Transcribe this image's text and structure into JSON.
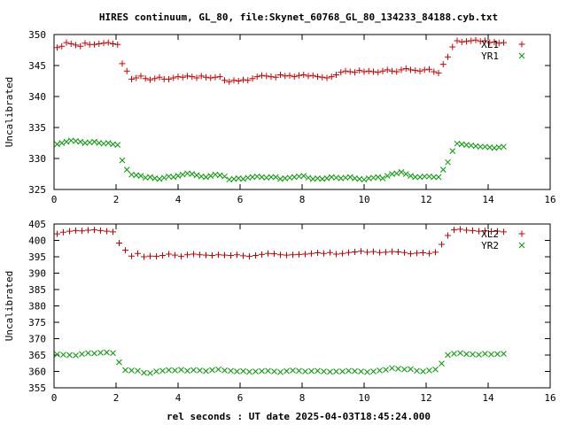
{
  "title": "HIRES continuum, GL_80, file:Skynet_60768_GL_80_134233_84188.cyb.txt",
  "xlabel": "rel seconds : UT date 2025-04-03T18:45:24.000",
  "colors": {
    "series1": "#cc0000",
    "series2": "#009900"
  },
  "chart_data": [
    {
      "type": "scatter",
      "title": "HIRES continuum, GL_80, file:Skynet_60768_GL_80_134233_84188.cyb.txt",
      "ylabel": "Uncalibrated",
      "xlabel": "",
      "xlim": [
        0,
        16
      ],
      "ylim": [
        325,
        350
      ],
      "xticks": [
        0,
        2,
        4,
        6,
        8,
        10,
        12,
        14,
        16
      ],
      "yticks": [
        325,
        330,
        335,
        340,
        345,
        350
      ],
      "grid": false,
      "legend": "top-right",
      "series": [
        {
          "name": "XL1",
          "marker": "plus",
          "x": [
            0.1,
            0.25,
            0.4,
            0.55,
            0.7,
            0.85,
            1.0,
            1.15,
            1.3,
            1.45,
            1.6,
            1.75,
            1.9,
            2.05,
            2.2,
            2.35,
            2.5,
            2.65,
            2.8,
            2.95,
            3.1,
            3.25,
            3.4,
            3.55,
            3.7,
            3.85,
            4.0,
            4.15,
            4.3,
            4.45,
            4.6,
            4.75,
            4.9,
            5.05,
            5.2,
            5.35,
            5.5,
            5.65,
            5.8,
            5.95,
            6.1,
            6.25,
            6.4,
            6.55,
            6.7,
            6.85,
            7.0,
            7.15,
            7.3,
            7.45,
            7.6,
            7.75,
            7.9,
            8.05,
            8.2,
            8.35,
            8.5,
            8.65,
            8.8,
            8.95,
            9.1,
            9.25,
            9.4,
            9.55,
            9.7,
            9.85,
            10.0,
            10.15,
            10.3,
            10.45,
            10.6,
            10.75,
            10.9,
            11.05,
            11.2,
            11.35,
            11.5,
            11.65,
            11.8,
            11.95,
            12.1,
            12.25,
            12.4,
            12.55,
            12.7,
            12.85,
            13.0,
            13.15,
            13.3,
            13.45,
            13.6,
            13.75,
            13.9,
            14.05,
            14.2,
            14.35,
            14.5
          ],
          "y": [
            347.9,
            348.1,
            348.7,
            348.5,
            348.3,
            348.1,
            348.6,
            348.4,
            348.4,
            348.5,
            348.6,
            348.7,
            348.5,
            348.4,
            345.3,
            344.1,
            342.8,
            343.0,
            343.3,
            342.9,
            342.7,
            342.9,
            343.1,
            342.8,
            342.8,
            343.0,
            343.2,
            343.1,
            343.3,
            343.2,
            343.0,
            343.3,
            343.1,
            343.0,
            343.1,
            343.2,
            342.6,
            342.4,
            342.6,
            342.5,
            342.7,
            342.6,
            342.9,
            343.2,
            343.4,
            343.3,
            343.2,
            343.1,
            343.5,
            343.3,
            343.4,
            343.2,
            343.4,
            343.5,
            343.3,
            343.4,
            343.2,
            343.1,
            343.0,
            343.2,
            343.5,
            343.9,
            344.1,
            344.0,
            343.9,
            344.2,
            344.0,
            344.1,
            344.0,
            343.9,
            344.1,
            344.3,
            344.1,
            344.0,
            344.3,
            344.5,
            344.3,
            344.2,
            344.1,
            344.3,
            344.4,
            344.0,
            343.8,
            345.2,
            346.4,
            348.0,
            349.0,
            348.8,
            348.9,
            349.0,
            349.1,
            348.9,
            349.0,
            348.7,
            348.8,
            348.6,
            348.7
          ]
        },
        {
          "name": "YR1",
          "marker": "cross",
          "x": [
            0.1,
            0.25,
            0.4,
            0.55,
            0.7,
            0.85,
            1.0,
            1.15,
            1.3,
            1.45,
            1.6,
            1.75,
            1.9,
            2.05,
            2.2,
            2.35,
            2.5,
            2.65,
            2.8,
            2.95,
            3.1,
            3.25,
            3.4,
            3.55,
            3.7,
            3.85,
            4.0,
            4.15,
            4.3,
            4.45,
            4.6,
            4.75,
            4.9,
            5.05,
            5.2,
            5.35,
            5.5,
            5.65,
            5.8,
            5.95,
            6.1,
            6.25,
            6.4,
            6.55,
            6.7,
            6.85,
            7.0,
            7.15,
            7.3,
            7.45,
            7.6,
            7.75,
            7.9,
            8.05,
            8.2,
            8.35,
            8.5,
            8.65,
            8.8,
            8.95,
            9.1,
            9.25,
            9.4,
            9.55,
            9.7,
            9.85,
            10.0,
            10.15,
            10.3,
            10.45,
            10.6,
            10.75,
            10.9,
            11.05,
            11.2,
            11.35,
            11.5,
            11.65,
            11.8,
            11.95,
            12.1,
            12.25,
            12.4,
            12.55,
            12.7,
            12.85,
            13.0,
            13.15,
            13.3,
            13.45,
            13.6,
            13.75,
            13.9,
            14.05,
            14.2,
            14.35,
            14.5
          ],
          "y": [
            332.3,
            332.5,
            332.7,
            332.9,
            332.8,
            332.7,
            332.5,
            332.6,
            332.7,
            332.5,
            332.4,
            332.5,
            332.3,
            332.2,
            329.7,
            328.2,
            327.4,
            327.3,
            327.2,
            326.9,
            327.0,
            326.8,
            326.7,
            326.9,
            327.1,
            327.0,
            327.2,
            327.4,
            327.6,
            327.5,
            327.3,
            327.1,
            327.0,
            327.2,
            327.4,
            327.3,
            327.1,
            326.6,
            326.7,
            326.8,
            326.7,
            326.9,
            327.0,
            327.1,
            327.0,
            326.9,
            327.0,
            327.0,
            326.7,
            326.8,
            326.9,
            327.0,
            327.1,
            327.2,
            326.9,
            326.7,
            326.8,
            326.7,
            326.8,
            327.0,
            326.9,
            326.8,
            326.9,
            327.0,
            326.8,
            326.7,
            326.6,
            326.8,
            326.9,
            327.0,
            326.8,
            327.2,
            327.5,
            327.6,
            327.8,
            327.5,
            327.2,
            327.0,
            327.0,
            327.1,
            327.1,
            327.0,
            327.0,
            328.2,
            329.4,
            331.2,
            332.4,
            332.3,
            332.2,
            332.1,
            332.0,
            331.9,
            331.9,
            331.8,
            331.7,
            331.8,
            331.9
          ]
        }
      ]
    },
    {
      "type": "scatter",
      "title": "",
      "ylabel": "Uncalibrated",
      "xlabel": "rel seconds : UT date 2025-04-03T18:45:24.000",
      "xlim": [
        0,
        16
      ],
      "ylim": [
        355,
        405
      ],
      "xticks": [
        0,
        2,
        4,
        6,
        8,
        10,
        12,
        14,
        16
      ],
      "yticks": [
        355,
        360,
        365,
        370,
        375,
        380,
        385,
        390,
        395,
        400,
        405
      ],
      "grid": false,
      "legend": "top-right",
      "series": [
        {
          "name": "XL2",
          "marker": "plus",
          "x": [
            0.1,
            0.3,
            0.5,
            0.7,
            0.9,
            1.1,
            1.3,
            1.5,
            1.7,
            1.9,
            2.1,
            2.3,
            2.5,
            2.7,
            2.9,
            3.1,
            3.3,
            3.5,
            3.7,
            3.9,
            4.1,
            4.3,
            4.5,
            4.7,
            4.9,
            5.1,
            5.3,
            5.5,
            5.7,
            5.9,
            6.1,
            6.3,
            6.5,
            6.7,
            6.9,
            7.1,
            7.3,
            7.5,
            7.7,
            7.9,
            8.1,
            8.3,
            8.5,
            8.7,
            8.9,
            9.1,
            9.3,
            9.5,
            9.7,
            9.9,
            10.1,
            10.3,
            10.5,
            10.7,
            10.9,
            11.1,
            11.3,
            11.5,
            11.7,
            11.9,
            12.1,
            12.3,
            12.5,
            12.7,
            12.9,
            13.1,
            13.3,
            13.5,
            13.7,
            13.9,
            14.1,
            14.3,
            14.5
          ],
          "y": [
            402.0,
            402.5,
            402.8,
            403.0,
            402.9,
            403.1,
            403.2,
            403.0,
            402.8,
            402.6,
            399.2,
            397.0,
            395.2,
            396.0,
            395.0,
            395.2,
            395.1,
            395.4,
            395.8,
            395.5,
            395.1,
            395.6,
            395.8,
            395.6,
            395.5,
            395.4,
            395.6,
            395.5,
            395.4,
            395.6,
            395.3,
            395.1,
            395.4,
            395.7,
            396.0,
            395.9,
            395.6,
            395.5,
            395.6,
            395.7,
            395.8,
            396.0,
            396.2,
            396.0,
            396.3,
            395.8,
            396.0,
            396.3,
            396.5,
            396.7,
            396.4,
            396.6,
            396.3,
            396.4,
            396.6,
            396.5,
            396.3,
            395.9,
            396.1,
            396.2,
            396.0,
            396.4,
            398.8,
            401.5,
            403.2,
            403.4,
            403.1,
            403.0,
            402.8,
            402.9,
            402.7,
            402.8,
            402.6
          ]
        },
        {
          "name": "YR2",
          "marker": "cross",
          "x": [
            0.1,
            0.3,
            0.5,
            0.7,
            0.9,
            1.1,
            1.3,
            1.5,
            1.7,
            1.9,
            2.1,
            2.3,
            2.5,
            2.7,
            2.9,
            3.1,
            3.3,
            3.5,
            3.7,
            3.9,
            4.1,
            4.3,
            4.5,
            4.7,
            4.9,
            5.1,
            5.3,
            5.5,
            5.7,
            5.9,
            6.1,
            6.3,
            6.5,
            6.7,
            6.9,
            7.1,
            7.3,
            7.5,
            7.7,
            7.9,
            8.1,
            8.3,
            8.5,
            8.7,
            8.9,
            9.1,
            9.3,
            9.5,
            9.7,
            9.9,
            10.1,
            10.3,
            10.5,
            10.7,
            10.9,
            11.1,
            11.3,
            11.5,
            11.7,
            11.9,
            12.1,
            12.3,
            12.5,
            12.7,
            12.9,
            13.1,
            13.3,
            13.5,
            13.7,
            13.9,
            14.1,
            14.3,
            14.5
          ],
          "y": [
            365.2,
            365.1,
            365.0,
            364.9,
            365.3,
            365.6,
            365.5,
            365.7,
            365.8,
            365.6,
            362.8,
            360.4,
            360.3,
            360.2,
            359.6,
            359.5,
            360.0,
            360.2,
            360.4,
            360.3,
            360.5,
            360.2,
            360.4,
            360.3,
            360.1,
            360.4,
            360.6,
            360.3,
            360.2,
            360.0,
            360.1,
            359.9,
            360.0,
            360.1,
            360.2,
            360.0,
            359.8,
            360.1,
            360.3,
            360.2,
            360.0,
            360.1,
            360.2,
            360.0,
            359.9,
            360.0,
            360.0,
            360.2,
            360.1,
            360.0,
            359.8,
            360.0,
            360.3,
            360.5,
            361.0,
            360.8,
            360.6,
            360.7,
            360.2,
            360.0,
            360.3,
            360.6,
            362.4,
            365.0,
            365.4,
            365.6,
            365.3,
            365.2,
            365.1,
            365.4,
            365.2,
            365.3,
            365.4
          ]
        }
      ]
    }
  ]
}
